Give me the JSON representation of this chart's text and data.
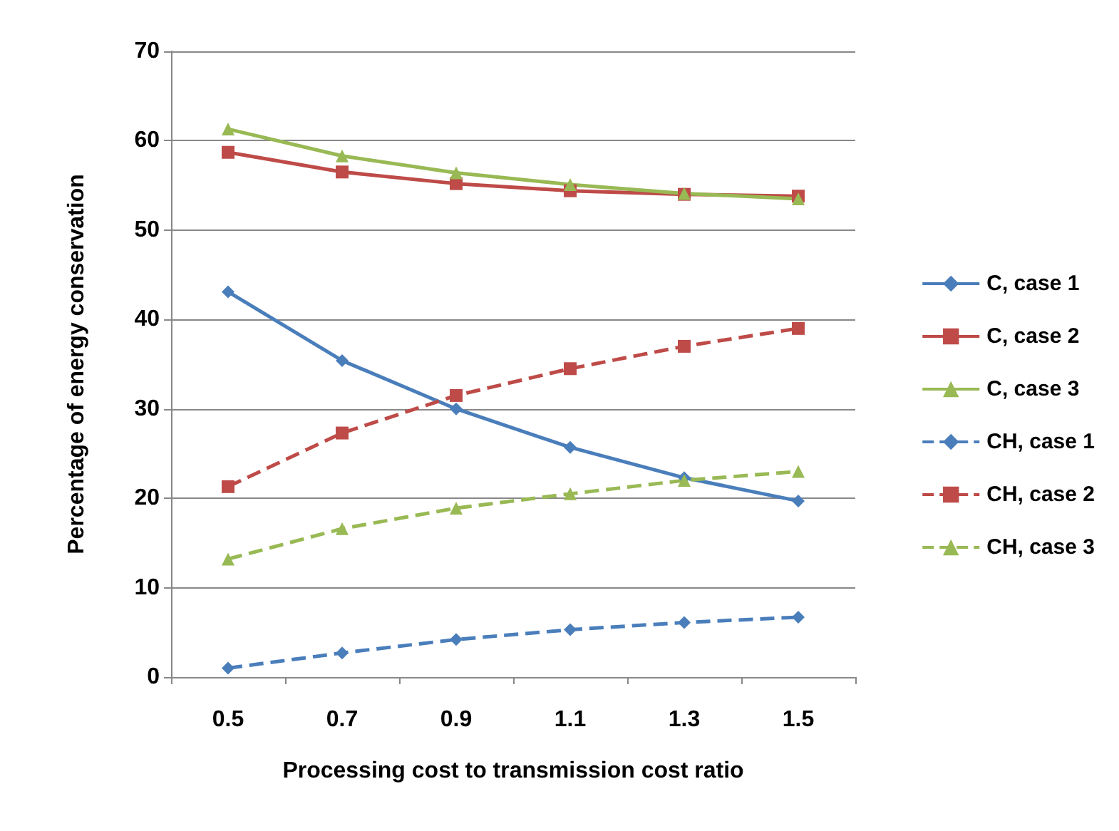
{
  "chart_data": {
    "type": "line",
    "xlabel": "Processing cost to transmission cost ratio",
    "ylabel": "Percentage of energy conservation",
    "categories": [
      "0.5",
      "0.7",
      "0.9",
      "1.1",
      "1.3",
      "1.5"
    ],
    "ylim": [
      0,
      70
    ],
    "yticks": [
      0,
      10,
      20,
      30,
      40,
      50,
      60,
      70
    ],
    "grid": "y",
    "legend": "right",
    "series": [
      {
        "name": "C, case 1",
        "color": "#4a7ebb",
        "marker": "diamond",
        "line_style": "solid",
        "values": [
          43.1,
          35.4,
          30,
          25.7,
          22.3,
          19.7
        ]
      },
      {
        "name": "C, case 2",
        "color": "#be4b48",
        "marker": "square",
        "line_style": "solid",
        "values": [
          58.7,
          56.5,
          55.2,
          54.4,
          54,
          53.8
        ]
      },
      {
        "name": "C, case 3",
        "color": "#98b954",
        "marker": "triangle",
        "line_style": "solid",
        "values": [
          61.3,
          58.3,
          56.4,
          55.1,
          54.1,
          53.5
        ]
      },
      {
        "name": "CH, case 1",
        "color": "#4a7ebb",
        "marker": "diamond",
        "line_style": "dashed",
        "values": [
          1,
          2.7,
          4.2,
          5.3,
          6.1,
          6.7
        ]
      },
      {
        "name": "CH, case 2",
        "color": "#be4b48",
        "marker": "square",
        "line_style": "dashed",
        "values": [
          21.3,
          27.3,
          31.5,
          34.5,
          37,
          39
        ]
      },
      {
        "name": "CH, case 3",
        "color": "#98b954",
        "marker": "triangle",
        "line_style": "dashed",
        "values": [
          13.2,
          16.6,
          18.9,
          20.5,
          22,
          23
        ]
      }
    ]
  }
}
